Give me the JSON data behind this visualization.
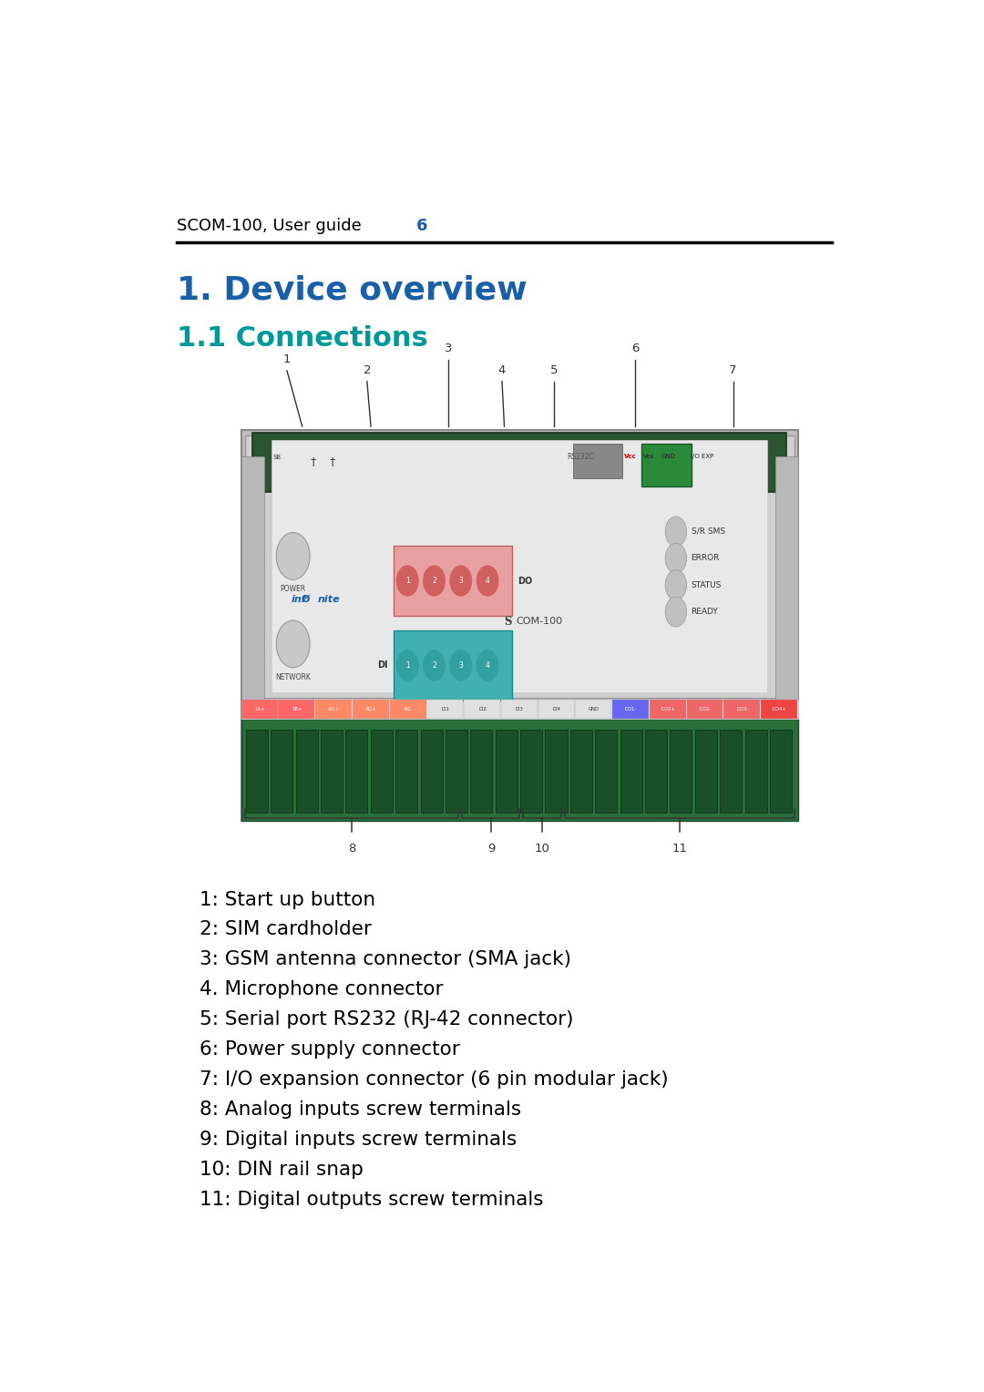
{
  "background_color": "#ffffff",
  "header_text": "SCOM-100, User guide",
  "header_page": "6",
  "header_text_color": "#000000",
  "header_page_color": "#1a5fa8",
  "header_line_color": "#000000",
  "title1": "1. Device overview",
  "title1_color": "#1a5fa8",
  "title2": "1.1 Connections",
  "title2_color": "#009999",
  "list_items": [
    "1: Start up button",
    "2: SIM cardholder",
    "3: GSM antenna connector (SMA jack)",
    "4. Microphone connector",
    "5: Serial port RS232 (RJ-42 connector)",
    "6: Power supply connector",
    "7: I/O expansion connector (6 pin modular jack)",
    "8: Analog inputs screw terminals",
    "9: Digital inputs screw terminals",
    "10: DIN rail snap",
    "11: Digital outputs screw terminals"
  ],
  "list_color": "#000000",
  "list_fontsize": 15.5,
  "figsize": [
    10.8,
    15.28
  ]
}
